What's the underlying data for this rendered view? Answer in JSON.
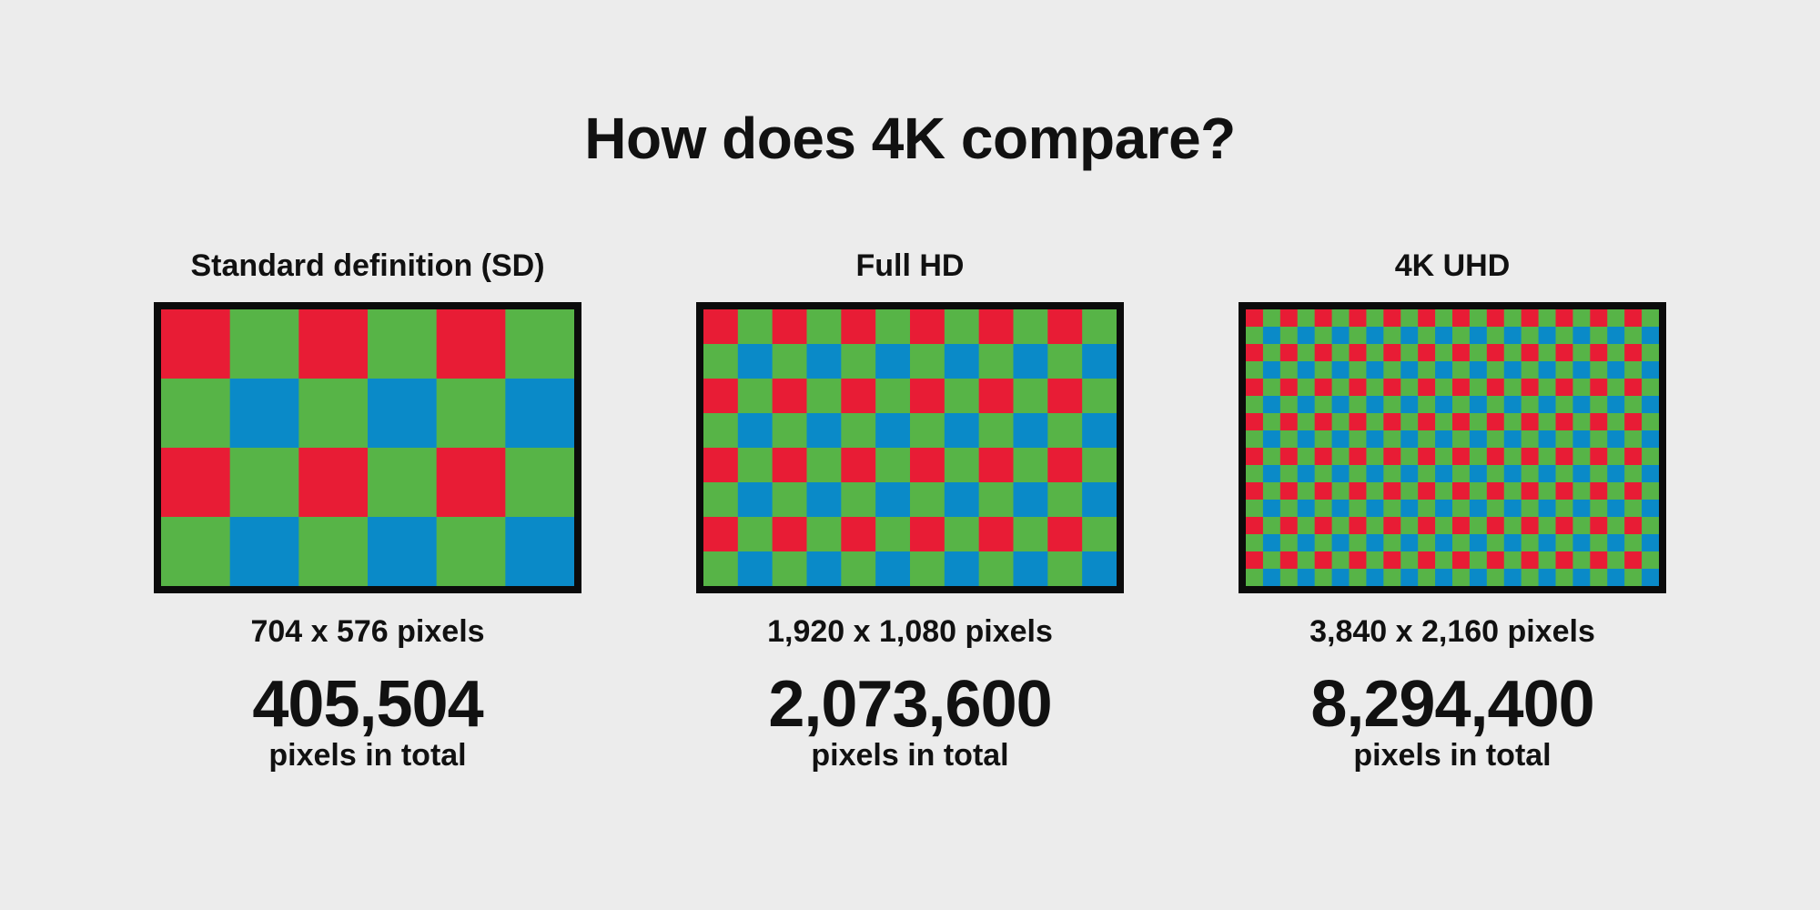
{
  "title": "How does 4K compare?",
  "colors": {
    "red": "#e81c35",
    "green": "#57b447",
    "blue": "#0a8ac8",
    "frame": "#0b0b0b",
    "background": "#ececec"
  },
  "panels": [
    {
      "label": "Standard definition (SD)",
      "resolution": "704 x 576 pixels",
      "total": "405,504",
      "total_label": "pixels in total",
      "grid": {
        "cols": 6,
        "rows": 4
      }
    },
    {
      "label": "Full HD",
      "resolution": "1,920 x 1,080 pixels",
      "total": "2,073,600",
      "total_label": "pixels in total",
      "grid": {
        "cols": 12,
        "rows": 8
      }
    },
    {
      "label": "4K UHD",
      "resolution": "3,840 x 2,160 pixels",
      "total": "8,294,400",
      "total_label": "pixels in total",
      "grid": {
        "cols": 24,
        "rows": 16
      }
    }
  ]
}
